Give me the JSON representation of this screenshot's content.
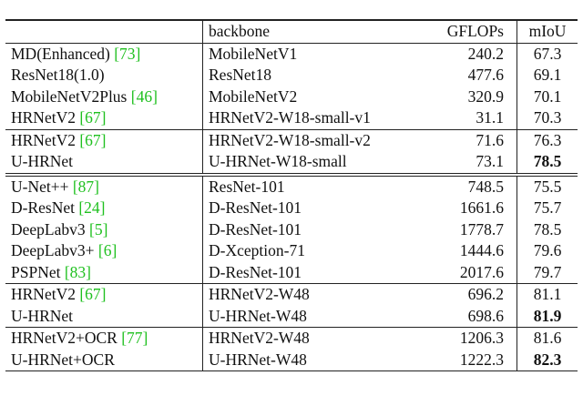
{
  "table": {
    "header": [
      "backbone",
      "GFLOPs",
      "mIoU"
    ],
    "sections": [
      {
        "groups": [
          {
            "rows": [
              {
                "method": "MD(Enhanced)",
                "ref": "[73]",
                "backbone": "MobileNetV1",
                "gflops": 240.2,
                "miou": 67.3
              },
              {
                "method": "ResNet18(1.0)",
                "backbone": "ResNet18",
                "gflops": 477.6,
                "miou": 69.1
              },
              {
                "method": "MobileNetV2Plus",
                "ref": "[46]",
                "backbone": "MobileNetV2",
                "gflops": 320.9,
                "miou": 70.1
              },
              {
                "method": "HRNetV2",
                "ref": "[67]",
                "backbone": "HRNetV2-W18-small-v1",
                "gflops": 31.1,
                "miou": 70.3
              }
            ]
          },
          {
            "rows": [
              {
                "method": "HRNetV2",
                "ref": "[67]",
                "backbone": "HRNetV2-W18-small-v2",
                "gflops": 71.6,
                "miou": 76.3
              },
              {
                "method": "U-HRNet",
                "backbone": "U-HRNet-W18-small",
                "gflops": 73.1,
                "miou": 78.5,
                "best": true
              }
            ]
          }
        ]
      },
      {
        "groups": [
          {
            "rows": [
              {
                "method": "U-Net++",
                "ref": "[87]",
                "backbone": "ResNet-101",
                "gflops": 748.5,
                "miou": 75.5
              },
              {
                "method": "D-ResNet",
                "ref": "[24]",
                "backbone": "D-ResNet-101",
                "gflops": 1661.6,
                "miou": 75.7
              },
              {
                "method": "DeepLabv3",
                "ref": "[5]",
                "backbone": "D-ResNet-101",
                "gflops": 1778.7,
                "miou": 78.5
              },
              {
                "method": "DeepLabv3+",
                "ref": "[6]",
                "backbone": "D-Xception-71",
                "gflops": 1444.6,
                "miou": 79.6
              },
              {
                "method": "PSPNet",
                "ref": "[83]",
                "backbone": "D-ResNet-101",
                "gflops": 2017.6,
                "miou": 79.7
              }
            ]
          },
          {
            "rows": [
              {
                "method": "HRNetV2",
                "ref": "[67]",
                "backbone": "HRNetV2-W48",
                "gflops": 696.2,
                "miou": 81.1
              },
              {
                "method": "U-HRNet",
                "backbone": "U-HRNet-W48",
                "gflops": 698.6,
                "miou": 81.9,
                "best": true
              }
            ]
          },
          {
            "rows": [
              {
                "method": "HRNetV2+OCR",
                "ref": "[77]",
                "backbone": "HRNetV2-W48",
                "gflops": 1206.3,
                "miou": 81.6
              },
              {
                "method": "U-HRNet+OCR",
                "backbone": "U-HRNet-W48",
                "gflops": 1222.3,
                "miou": 82.3,
                "best": true
              }
            ]
          }
        ]
      }
    ]
  }
}
